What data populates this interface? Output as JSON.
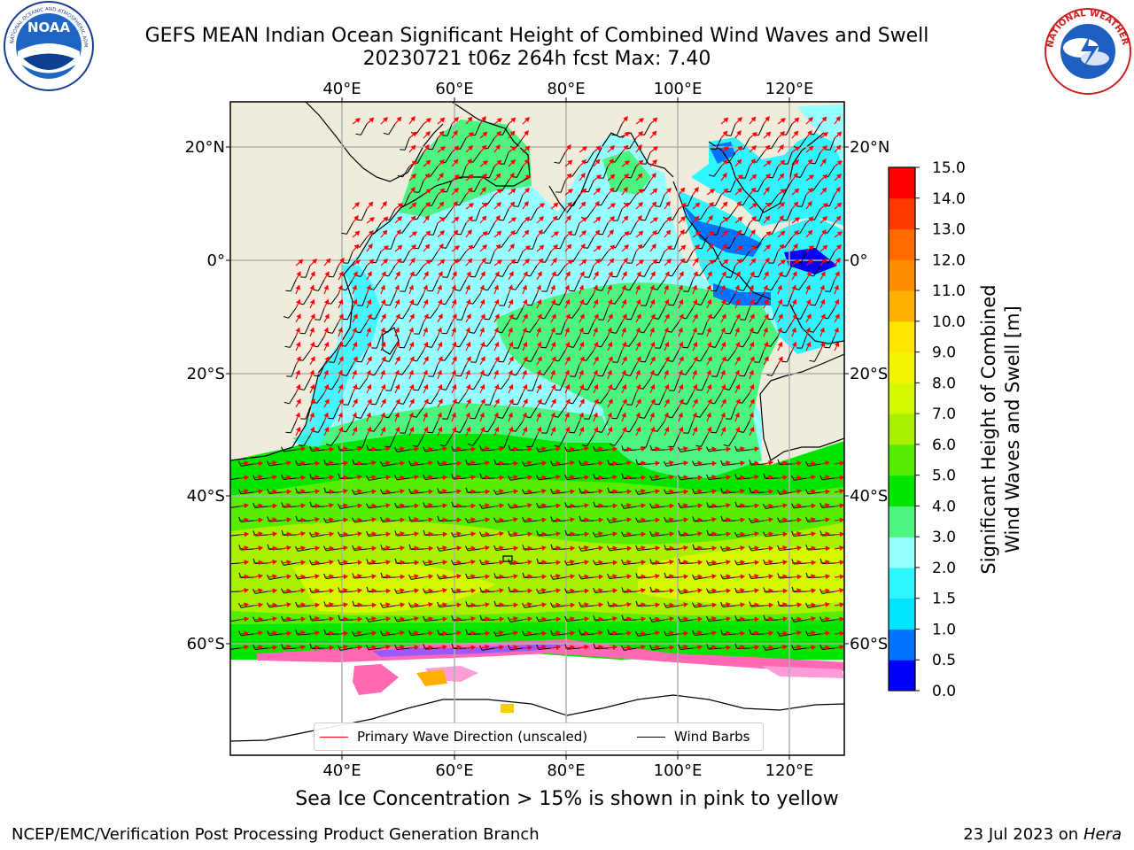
{
  "title": {
    "line1": "GEFS MEAN Indian Ocean Significant Height of Combined Wind Waves and Swell",
    "line2": "20230721 t06z 264h fcst   Max: 7.40"
  },
  "logos": {
    "left": {
      "text": "NOAA",
      "ring_text": "NATIONAL OCEANIC AND ATMOSPHERIC ADMINISTRATION · U.S. DEPARTMENT OF COMMERCE"
    },
    "right": {
      "ring_text": "NATIONAL WEATHER SERVICE"
    }
  },
  "axes": {
    "lon_top": [
      "40°E",
      "60°E",
      "80°E",
      "100°E",
      "120°E"
    ],
    "lon_bottom": [
      "40°E",
      "60°E",
      "80°E",
      "100°E",
      "120°E"
    ],
    "lat_left": [
      "20°N",
      "0°",
      "20°S",
      "40°S",
      "60°S"
    ],
    "lat_right": [
      "20°N",
      "0°",
      "20°S",
      "40°S",
      "60°S"
    ]
  },
  "colorbar": {
    "label_line1": "Significant Height of Combined",
    "label_line2": "Wind Waves and Swell [m]",
    "ticks": [
      "0.0",
      "0.5",
      "1.0",
      "1.5",
      "2.0",
      "3.0",
      "4.0",
      "5.0",
      "6.0",
      "7.0",
      "8.0",
      "9.0",
      "10.0",
      "11.0",
      "12.0",
      "13.0",
      "14.0",
      "15.0"
    ],
    "colors": [
      "#0000ff",
      "#0073ff",
      "#00e5ff",
      "#2ff5ff",
      "#96ffff",
      "#4cf57f",
      "#00e500",
      "#55ee00",
      "#a8f000",
      "#d4f800",
      "#f4f400",
      "#ffe600",
      "#ffb000",
      "#ff8c00",
      "#ff6a00",
      "#ff3a00",
      "#ff0000"
    ]
  },
  "legend": {
    "wave_direction": "Primary Wave Direction (unscaled)",
    "wind_barbs": "Wind Barbs",
    "wave_color": "#ff0000",
    "barb_color": "#000000"
  },
  "caption": "Sea Ice Concentration > 15% is shown in pink to yellow",
  "footer": {
    "credit": "NCEP/EMC/Verification Post Processing Product Generation Branch",
    "date": "23 Jul 2023 on ",
    "host": "Hera"
  }
}
